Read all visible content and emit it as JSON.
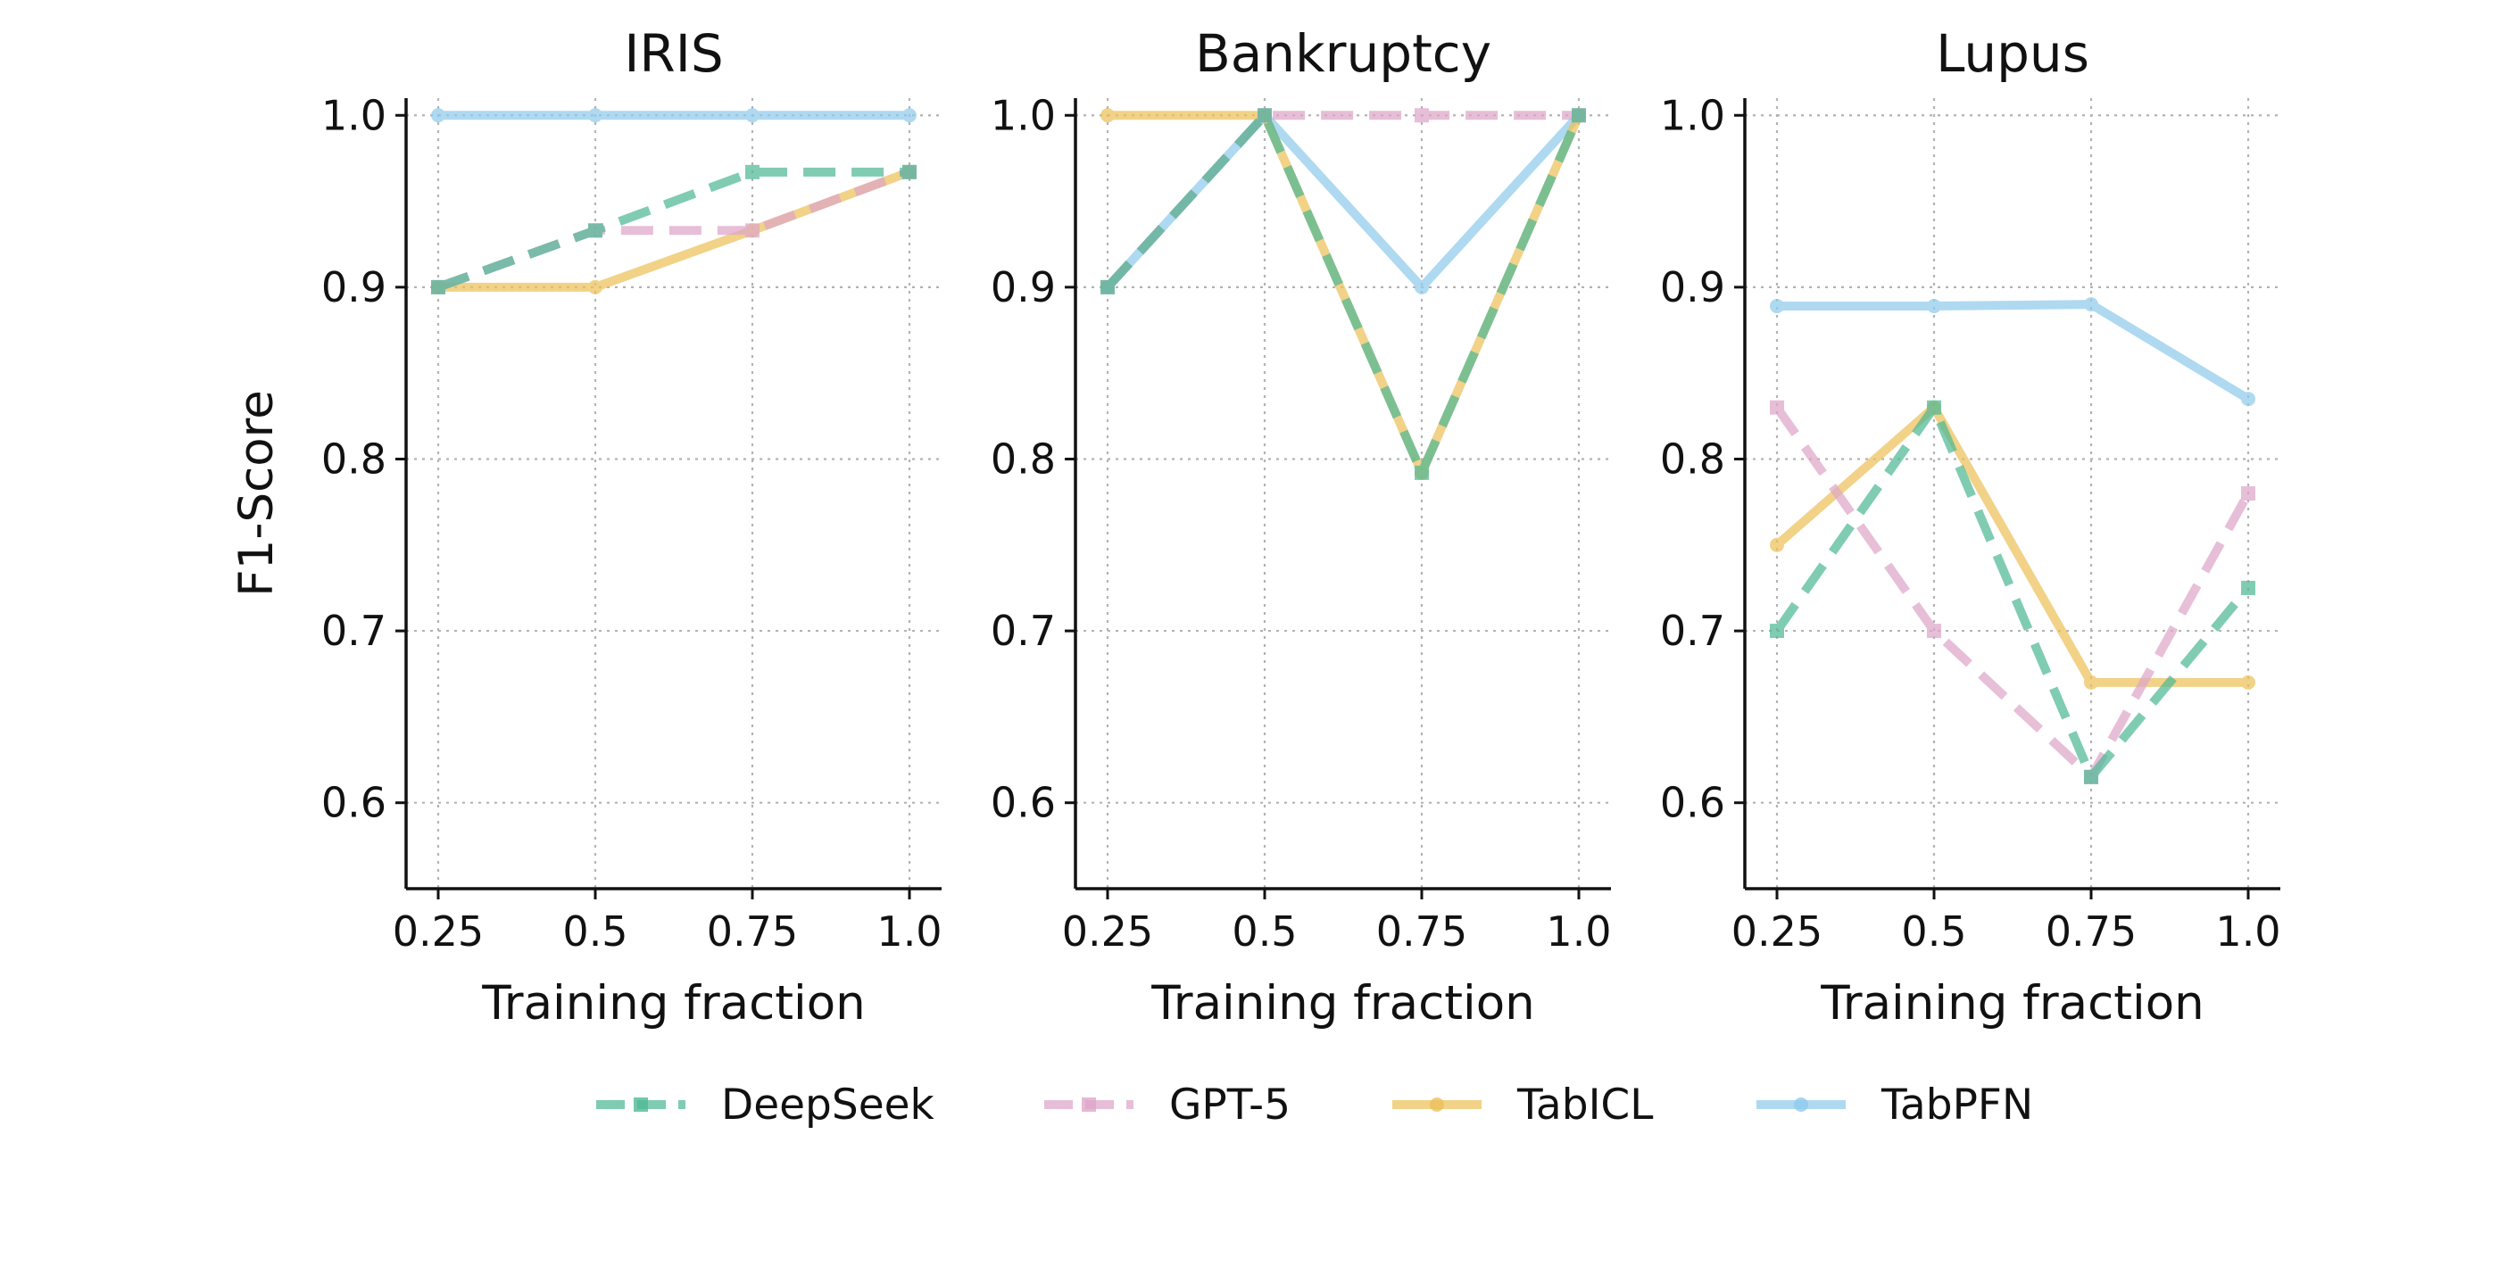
{
  "chart_data": [
    {
      "type": "line",
      "title": "IRIS",
      "xlabel": "Training fraction",
      "ylabel": "F1-Score",
      "x": [
        0.25,
        0.5,
        0.75,
        1.0
      ],
      "x_tick_labels": [
        "0.25",
        "0.5",
        "0.75",
        "1.0"
      ],
      "ylim": [
        0.55,
        1.01
      ],
      "y_ticks": [
        0.6,
        0.7,
        0.8,
        0.9,
        1.0
      ],
      "y_tick_labels": [
        "0.6",
        "0.7",
        "0.8",
        "0.9",
        "1.0"
      ],
      "grid": true,
      "series": [
        {
          "name": "DeepSeek",
          "values": [
            0.9,
            0.933,
            0.967,
            0.967
          ]
        },
        {
          "name": "GPT-5",
          "values": [
            0.9,
            0.933,
            0.933,
            0.967
          ]
        },
        {
          "name": "TabICL",
          "values": [
            0.9,
            0.9,
            0.933,
            0.967
          ]
        },
        {
          "name": "TabPFN",
          "values": [
            1.0,
            1.0,
            1.0,
            1.0
          ]
        }
      ]
    },
    {
      "type": "line",
      "title": "Bankruptcy",
      "xlabel": "Training fraction",
      "ylabel": "",
      "x": [
        0.25,
        0.5,
        0.75,
        1.0
      ],
      "x_tick_labels": [
        "0.25",
        "0.5",
        "0.75",
        "1.0"
      ],
      "ylim": [
        0.55,
        1.01
      ],
      "y_ticks": [
        0.6,
        0.7,
        0.8,
        0.9,
        1.0
      ],
      "y_tick_labels": [
        "0.6",
        "0.7",
        "0.8",
        "0.9",
        "1.0"
      ],
      "grid": true,
      "series": [
        {
          "name": "DeepSeek",
          "values": [
            0.9,
            1.0,
            0.792,
            1.0
          ]
        },
        {
          "name": "GPT-5",
          "values": [
            0.9,
            1.0,
            1.0,
            1.0
          ]
        },
        {
          "name": "TabICL",
          "values": [
            1.0,
            1.0,
            0.792,
            1.0
          ]
        },
        {
          "name": "TabPFN",
          "values": [
            0.9,
            1.0,
            0.9,
            1.0
          ]
        }
      ]
    },
    {
      "type": "line",
      "title": "Lupus",
      "xlabel": "Training fraction",
      "ylabel": "",
      "x": [
        0.25,
        0.5,
        0.75,
        1.0
      ],
      "x_tick_labels": [
        "0.25",
        "0.5",
        "0.75",
        "1.0"
      ],
      "ylim": [
        0.55,
        1.01
      ],
      "y_ticks": [
        0.6,
        0.7,
        0.8,
        0.9,
        1.0
      ],
      "y_tick_labels": [
        "0.6",
        "0.7",
        "0.8",
        "0.9",
        "1.0"
      ],
      "grid": true,
      "series": [
        {
          "name": "DeepSeek",
          "values": [
            0.7,
            0.83,
            0.615,
            0.725
          ]
        },
        {
          "name": "GPT-5",
          "values": [
            0.83,
            0.7,
            0.615,
            0.78
          ]
        },
        {
          "name": "TabICL",
          "values": [
            0.75,
            0.83,
            0.67,
            0.67
          ]
        },
        {
          "name": "TabPFN",
          "values": [
            0.889,
            0.889,
            0.89,
            0.835
          ]
        }
      ]
    }
  ],
  "legend": {
    "placement": "bottom",
    "entries": [
      {
        "name": "DeepSeek",
        "color": "#4fb996",
        "dash": "dashed",
        "marker": "square"
      },
      {
        "name": "GPT-5",
        "color": "#dea6c8",
        "dash": "dashed",
        "marker": "square"
      },
      {
        "name": "TabICL",
        "color": "#ecc15a",
        "dash": "solid",
        "marker": "circle"
      },
      {
        "name": "TabPFN",
        "color": "#8fcbed",
        "dash": "solid",
        "marker": "circle"
      }
    ]
  }
}
